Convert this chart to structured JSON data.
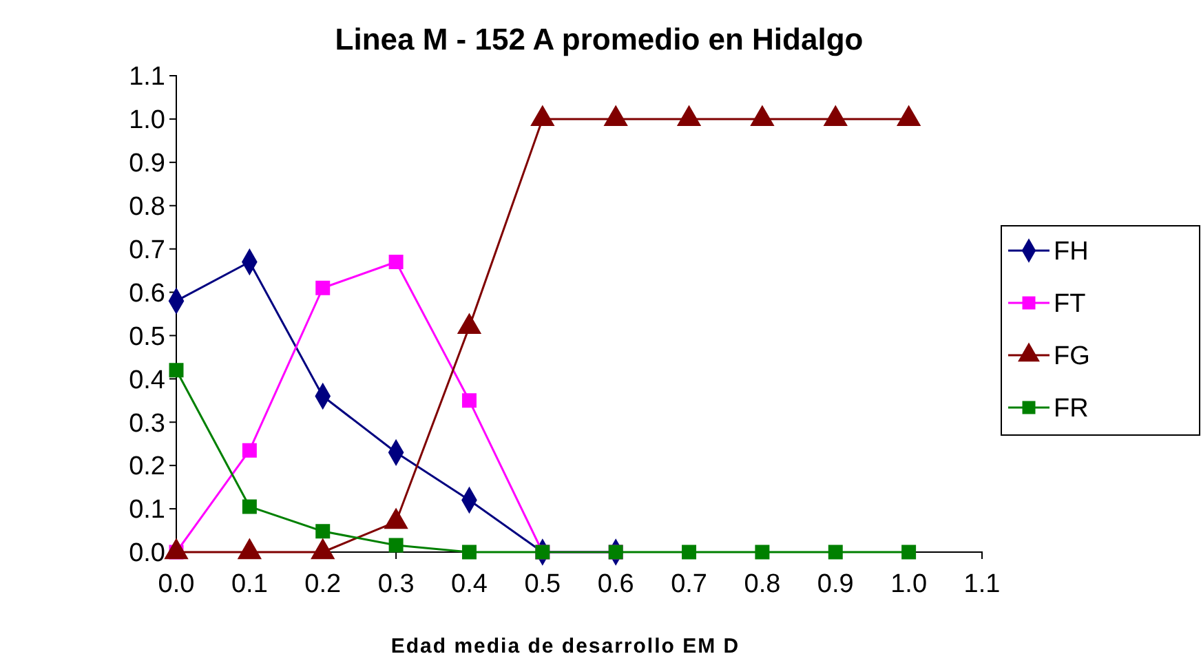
{
  "chart_data": {
    "type": "line",
    "title": "Linea M - 152 A  promedio en Hidalgo",
    "xlabel": "Edad media de desarrollo EM D",
    "x": [
      0.0,
      0.1,
      0.2,
      0.3,
      0.4,
      0.5,
      0.6,
      0.7,
      0.8,
      0.9,
      1.0
    ],
    "series": [
      {
        "name": "FH",
        "color": "#000080",
        "marker": "diamond",
        "values": [
          0.58,
          0.67,
          0.36,
          0.23,
          0.12,
          0,
          0,
          null,
          null,
          null,
          null
        ]
      },
      {
        "name": "FT",
        "color": "#ff00ff",
        "marker": "square",
        "values": [
          0,
          0.235,
          0.61,
          0.67,
          0.35,
          0,
          0,
          null,
          null,
          null,
          null
        ]
      },
      {
        "name": "FG",
        "color": "#800000",
        "marker": "triangle",
        "values": [
          0,
          0,
          0,
          0.07,
          0.52,
          1.0,
          1.0,
          1.0,
          1.0,
          1.0,
          1.0
        ]
      },
      {
        "name": "FR",
        "color": "#008000",
        "marker": "square",
        "values": [
          0.42,
          0.105,
          0.048,
          0.016,
          0,
          0,
          0,
          0,
          0,
          0,
          0
        ]
      }
    ],
    "xlim": [
      0,
      1.1
    ],
    "xticks": [
      {
        "value": 0,
        "label": "0.0"
      },
      {
        "value": 0.1,
        "label": "0.1"
      },
      {
        "value": 0.2,
        "label": "0.2"
      },
      {
        "value": 0.3,
        "label": "0.3"
      },
      {
        "value": 0.4,
        "label": "0.4"
      },
      {
        "value": 0.5,
        "label": "0.5"
      },
      {
        "value": 0.6,
        "label": "0.6"
      },
      {
        "value": 0.7,
        "label": "0.7"
      },
      {
        "value": 0.8,
        "label": "0.8"
      },
      {
        "value": 0.9,
        "label": "0.9"
      },
      {
        "value": 1.0,
        "label": "1.0"
      },
      {
        "value": 1.1,
        "label": "1.1"
      }
    ],
    "ylim": [
      0,
      1.1
    ],
    "yticks": [
      {
        "value": 0,
        "label": "0.0"
      },
      {
        "value": 0.1,
        "label": "0.1"
      },
      {
        "value": 0.2,
        "label": "0.2"
      },
      {
        "value": 0.3,
        "label": "0.3"
      },
      {
        "value": 0.4,
        "label": "0.4"
      },
      {
        "value": 0.5,
        "label": "0.5"
      },
      {
        "value": 0.6,
        "label": "0.6"
      },
      {
        "value": 0.7,
        "label": "0.7"
      },
      {
        "value": 0.8,
        "label": "0.8"
      },
      {
        "value": 0.9,
        "label": "0.9"
      },
      {
        "value": 1.0,
        "label": "1.0"
      },
      {
        "value": 1.1,
        "label": "1.1"
      }
    ],
    "grid": false,
    "legend": "right",
    "line_style": "solid"
  }
}
